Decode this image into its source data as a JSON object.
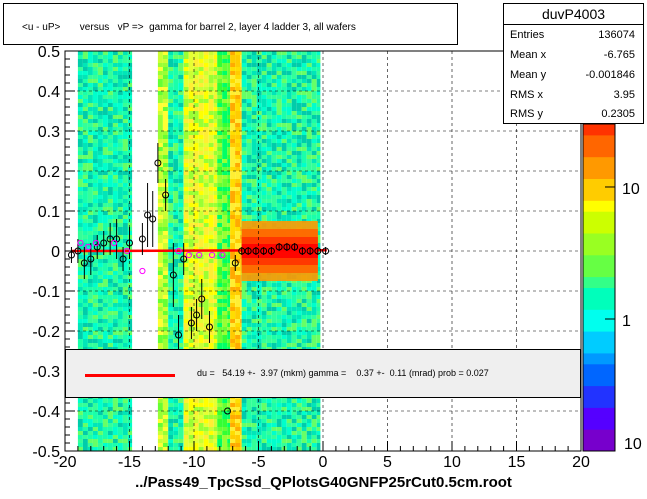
{
  "title": "<u - uP>       versus   vP =>  gamma for barrel 2, layer 4 ladder 3, all wafers",
  "stats": {
    "name": "duvP4003",
    "rows": [
      {
        "label": "Entries",
        "value": "136074"
      },
      {
        "label": "Mean x",
        "value": "-6.765"
      },
      {
        "label": "Mean y",
        "value": "-0.001846"
      },
      {
        "label": "RMS x",
        "value": "3.95"
      },
      {
        "label": "RMS y",
        "value": "0.2305"
      }
    ]
  },
  "fit_text": "du =   54.19 +-  3.97 (mkm) gamma =    0.37 +-  0.11 (mrad) prob = 0.027",
  "footer": "../Pass49_TpcSsd_QPlotsG40GNFP25rCut0.5cm.root",
  "colors": {
    "fit_line": "#ff0000",
    "points": "#000000",
    "points_alt": "#ff00ff",
    "fit_box_bg": "#efefef"
  },
  "chart_data": {
    "type": "heatmap",
    "xlim": [
      -20,
      20
    ],
    "ylim": [
      -0.5,
      0.5
    ],
    "x_ticks": [
      -20,
      -15,
      -10,
      -5,
      0,
      5,
      10,
      15,
      20
    ],
    "y_ticks": [
      0.4,
      0.3,
      0.2,
      0.1,
      0,
      -0.1,
      -0.2,
      -0.3,
      -0.4,
      -0.5
    ],
    "y_top_label": "0.5",
    "grid": true,
    "colorbar": {
      "scale": "log",
      "ticks": [
        {
          "value": 10,
          "label": "10"
        },
        {
          "value": 1,
          "label": "1"
        }
      ],
      "bottom_label": "10",
      "range": [
        0.1,
        30
      ]
    },
    "heatmap_bands": [
      {
        "x0": -19.0,
        "x1": -14.8,
        "level": "cyan-green"
      },
      {
        "x0": -12.8,
        "x1": -12.0,
        "level": "green-yellow"
      },
      {
        "x0": -12.0,
        "x1": -10.8,
        "level": "cyan-green"
      },
      {
        "x0": -10.8,
        "x1": -8.2,
        "level": "yellow"
      },
      {
        "x0": -8.2,
        "x1": -7.2,
        "level": "green"
      },
      {
        "x0": -7.2,
        "x1": -6.3,
        "level": "orange"
      },
      {
        "x0": -6.3,
        "x1": -0.2,
        "level": "cyan-green"
      }
    ],
    "core": {
      "x0": -6.3,
      "x1": -0.4,
      "y_center": 0.0,
      "level": "red"
    },
    "profile_points": [
      {
        "x": -19.5,
        "y": -0.01,
        "err": 0.02
      },
      {
        "x": -19.0,
        "y": 0.0,
        "err": 0.03
      },
      {
        "x": -18.5,
        "y": -0.03,
        "err": 0.04
      },
      {
        "x": -18.0,
        "y": -0.02,
        "err": 0.04
      },
      {
        "x": -17.5,
        "y": 0.01,
        "err": 0.03
      },
      {
        "x": -17.0,
        "y": 0.02,
        "err": 0.03
      },
      {
        "x": -16.5,
        "y": 0.03,
        "err": 0.04
      },
      {
        "x": -16.0,
        "y": 0.03,
        "err": 0.05
      },
      {
        "x": -15.5,
        "y": -0.02,
        "err": 0.03
      },
      {
        "x": -15.0,
        "y": 0.02,
        "err": 0.04
      },
      {
        "x": -14.0,
        "y": 0.03,
        "err": 0.04
      },
      {
        "x": -13.6,
        "y": 0.09,
        "err": 0.08
      },
      {
        "x": -13.2,
        "y": 0.08,
        "err": 0.07
      },
      {
        "x": -12.8,
        "y": 0.22,
        "err": 0.05
      },
      {
        "x": -12.2,
        "y": 0.14,
        "err": 0.04
      },
      {
        "x": -11.6,
        "y": -0.06,
        "err": 0.08
      },
      {
        "x": -11.2,
        "y": -0.21,
        "err": 0.05
      },
      {
        "x": -10.8,
        "y": -0.02,
        "err": 0.04
      },
      {
        "x": -10.2,
        "y": -0.18,
        "err": 0.04
      },
      {
        "x": -9.8,
        "y": -0.16,
        "err": 0.04
      },
      {
        "x": -9.4,
        "y": -0.12,
        "err": 0.05
      },
      {
        "x": -8.8,
        "y": -0.19,
        "err": 0.04
      },
      {
        "x": -7.4,
        "y": -0.4,
        "err": 0.0
      },
      {
        "x": -6.8,
        "y": -0.03,
        "err": 0.02
      },
      {
        "x": -6.3,
        "y": 0.0,
        "err": 0.01
      },
      {
        "x": -5.8,
        "y": 0.0,
        "err": 0.01
      },
      {
        "x": -5.2,
        "y": 0.0,
        "err": 0.01
      },
      {
        "x": -4.6,
        "y": 0.0,
        "err": 0.01
      },
      {
        "x": -4.0,
        "y": 0.0,
        "err": 0.01
      },
      {
        "x": -3.4,
        "y": 0.01,
        "err": 0.01
      },
      {
        "x": -2.8,
        "y": 0.01,
        "err": 0.01
      },
      {
        "x": -2.2,
        "y": 0.01,
        "err": 0.01
      },
      {
        "x": -1.6,
        "y": 0.0,
        "err": 0.01
      },
      {
        "x": -1.0,
        "y": 0.0,
        "err": 0.01
      },
      {
        "x": -0.4,
        "y": 0.0,
        "err": 0.01
      },
      {
        "x": 0.2,
        "y": 0.0,
        "err": 0.01
      }
    ],
    "profile_points_alt": [
      {
        "x": -18.8,
        "y": 0.02
      },
      {
        "x": -18.2,
        "y": 0.01
      },
      {
        "x": -17.6,
        "y": 0.02
      },
      {
        "x": -16.2,
        "y": 0.02
      },
      {
        "x": -15.2,
        "y": 0.0
      },
      {
        "x": -14.0,
        "y": -0.05
      },
      {
        "x": -11.2,
        "y": 0.0
      },
      {
        "x": -10.4,
        "y": -0.01
      },
      {
        "x": -9.6,
        "y": -0.01
      },
      {
        "x": -8.6,
        "y": -0.01
      },
      {
        "x": -7.8,
        "y": -0.01
      }
    ],
    "fit_line": {
      "x0": -19.5,
      "y0": 0.0,
      "x1": 0.3,
      "y1": 0.002
    }
  }
}
